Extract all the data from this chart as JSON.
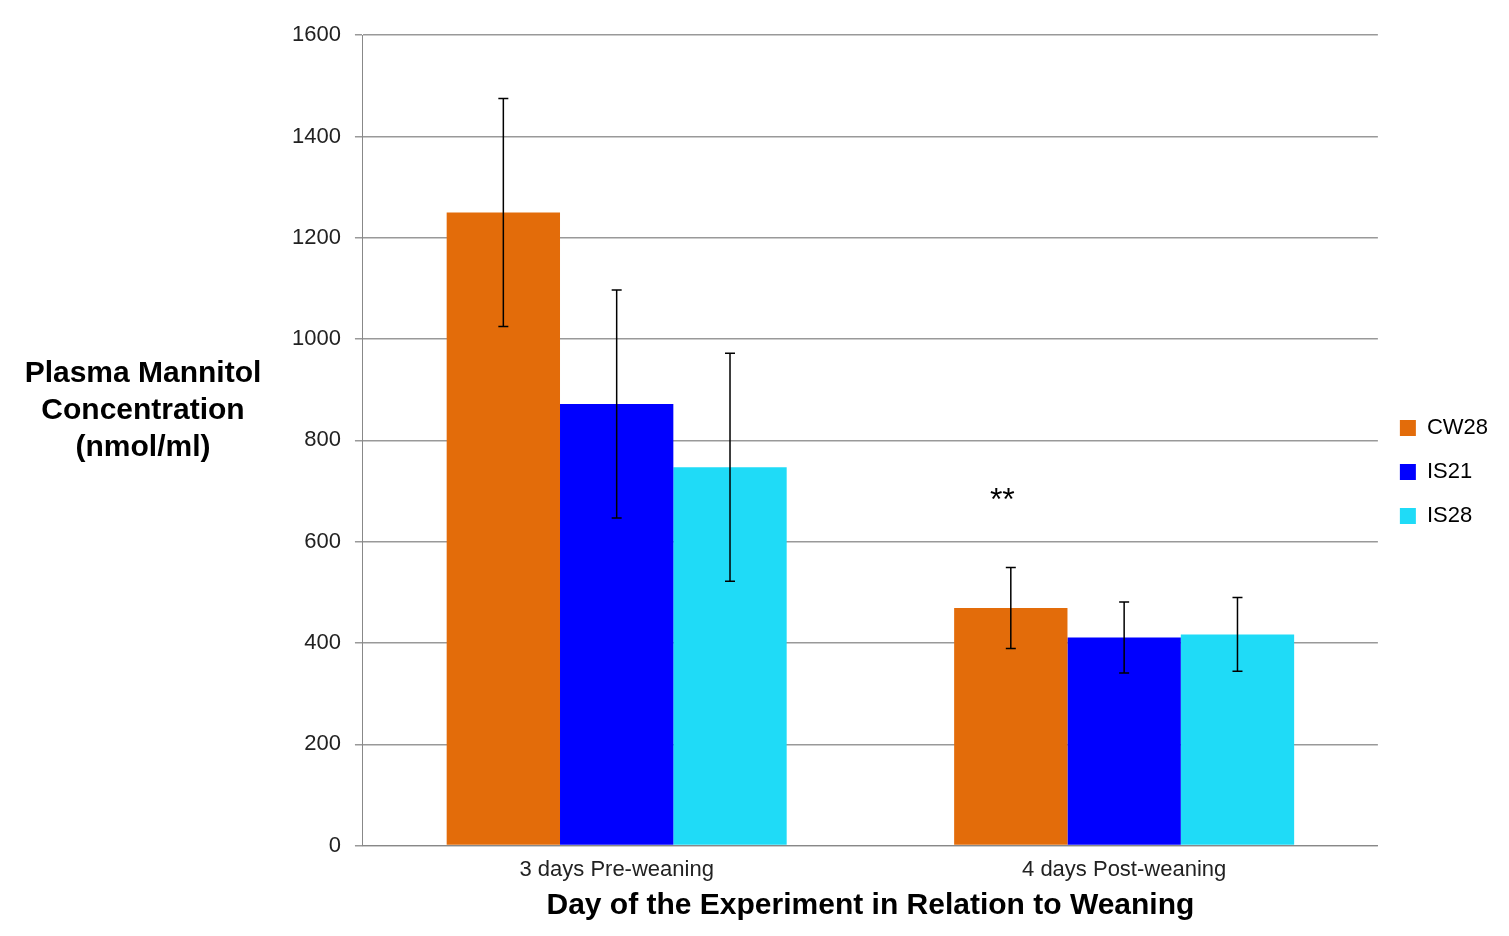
{
  "chart_data": {
    "type": "bar",
    "xlabel": "Day of the Experiment in Relation to Weaning",
    "ylabel": "Plasma Mannitol Concentration (nmol/ml)",
    "categories": [
      "3 days Pre-weaning",
      "4 days Post-weaning"
    ],
    "series": [
      {
        "name": "CW28",
        "color": "#e36c0a",
        "values": [
          1250,
          469
        ],
        "errors": [
          225,
          80
        ]
      },
      {
        "name": "IS21",
        "color": "#0000ff",
        "values": [
          872,
          411
        ],
        "errors": [
          225,
          70
        ]
      },
      {
        "name": "IS28",
        "color": "#1fdbf7",
        "values": [
          747,
          417
        ],
        "errors": [
          225,
          73
        ]
      }
    ],
    "ylim": [
      0,
      1600
    ],
    "yticks": [
      0,
      200,
      400,
      600,
      800,
      1000,
      1200,
      1400,
      1600
    ],
    "grid": "y",
    "legend": "right",
    "annotations": [
      "**"
    ]
  }
}
